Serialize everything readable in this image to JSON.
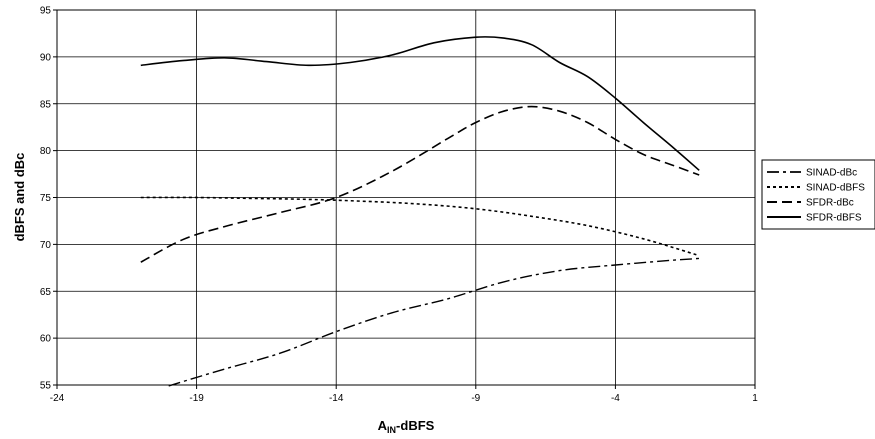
{
  "chart_data": {
    "type": "line",
    "title": "",
    "xlabel_main": "A",
    "xlabel_sub": "IN",
    "xlabel_tail": "-dBFS",
    "ylabel": "dBFS and dBc",
    "xlim": [
      -24,
      1
    ],
    "ylim": [
      55,
      95
    ],
    "x_ticks": [
      "-24",
      "-19",
      "-14",
      "-9",
      "-4",
      "1"
    ],
    "y_ticks": [
      "55",
      "60",
      "65",
      "70",
      "75",
      "80",
      "85",
      "90",
      "95"
    ],
    "grid": true,
    "legend_placement": "right",
    "series": [
      {
        "name": "SINAD-dBc",
        "dash": "long-dash",
        "x": [
          -20,
          -18,
          -16,
          -14,
          -12,
          -10,
          -8,
          -6,
          -4,
          -2,
          -1
        ],
        "y": [
          54.9,
          56.7,
          58.4,
          60.7,
          62.7,
          64.2,
          66.0,
          67.2,
          67.8,
          68.3,
          68.5
        ]
      },
      {
        "name": "SINAD-dBFS",
        "dash": "dotted",
        "x": [
          -21,
          -19,
          -17,
          -15,
          -13,
          -11,
          -9,
          -7,
          -5,
          -3,
          -1
        ],
        "y": [
          75.0,
          75.0,
          74.9,
          74.8,
          74.6,
          74.3,
          73.8,
          73.0,
          72.0,
          70.6,
          68.8
        ]
      },
      {
        "name": "SFDR-dBc",
        "dash": "dash",
        "x": [
          -21,
          -19.5,
          -18,
          -16,
          -14,
          -12,
          -10,
          -9,
          -8,
          -7,
          -6,
          -5,
          -4,
          -3,
          -2,
          -1
        ],
        "y": [
          68.1,
          70.5,
          71.9,
          73.4,
          75.0,
          77.8,
          81.3,
          83.0,
          84.2,
          84.7,
          84.2,
          83.0,
          81.2,
          79.6,
          78.5,
          77.4
        ]
      },
      {
        "name": "SFDR-dBFS",
        "dash": "solid",
        "x": [
          -21,
          -19.5,
          -18,
          -16.5,
          -15,
          -13.5,
          -12,
          -10.5,
          -9,
          -8,
          -7,
          -6,
          -5,
          -4,
          -3,
          -2,
          -1
        ],
        "y": [
          89.1,
          89.6,
          89.9,
          89.5,
          89.1,
          89.4,
          90.2,
          91.5,
          92.1,
          92.0,
          91.3,
          89.4,
          87.9,
          85.6,
          83.0,
          80.5,
          77.9
        ]
      }
    ]
  }
}
